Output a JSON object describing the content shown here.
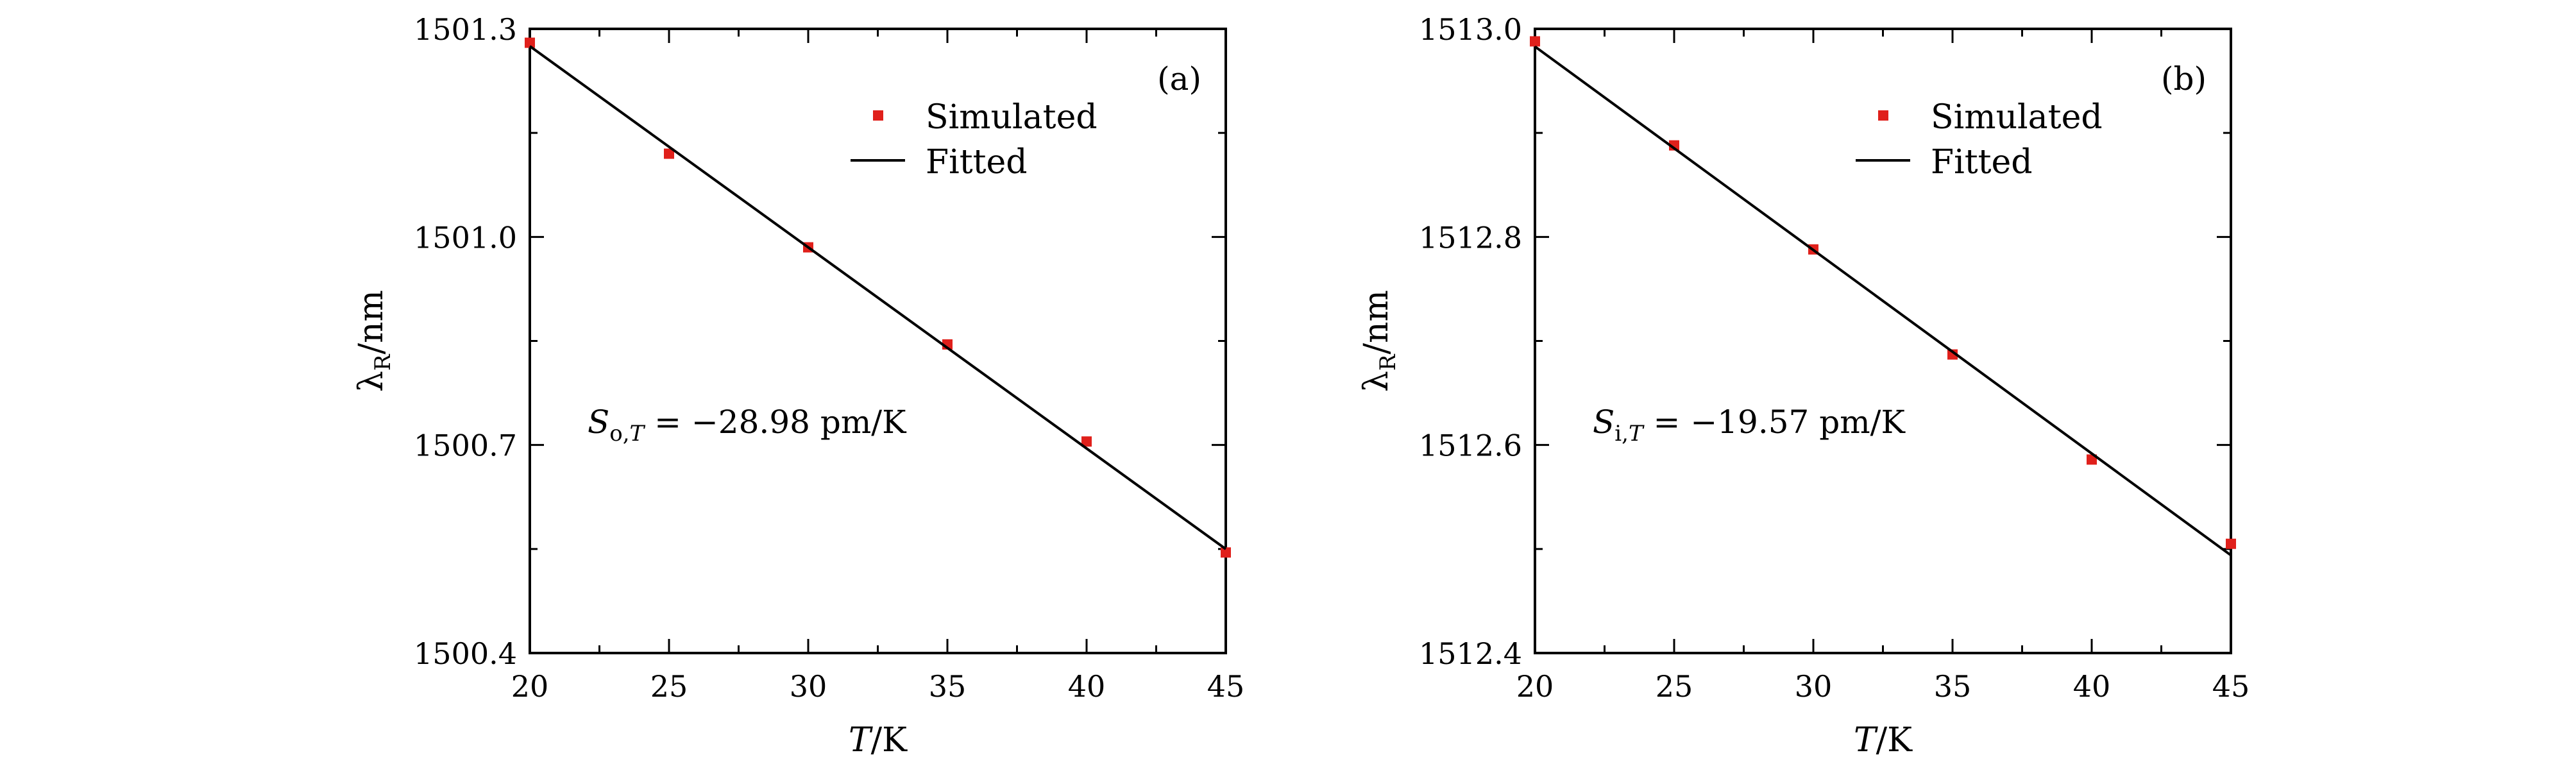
{
  "chart_data": [
    {
      "type": "scatter",
      "panel_label": "(a)",
      "xlabel_var": "T",
      "xlabel_unit": "/K",
      "ylabel_var": "λ",
      "ylabel_sub": "R",
      "ylabel_unit": "/nm",
      "xlim": [
        20,
        45
      ],
      "ylim": [
        1500.4,
        1501.3
      ],
      "xticks": [
        "20",
        "25",
        "30",
        "35",
        "40",
        "45"
      ],
      "yticks": [
        "1500.4",
        "1500.7",
        "1501.0",
        "1501.3"
      ],
      "grid": false,
      "legend_position": "top-right",
      "series": [
        {
          "name": "Simulated",
          "kind": "points",
          "x": [
            20,
            25,
            30,
            35,
            40,
            45
          ],
          "y": [
            1501.28,
            1501.12,
            1500.985,
            1500.845,
            1500.705,
            1500.545
          ],
          "color": "#e0201b"
        },
        {
          "name": "Fitted",
          "kind": "line",
          "x": [
            20,
            45
          ],
          "y": [
            1501.275,
            1500.55
          ],
          "color": "#000000"
        }
      ],
      "annotation": {
        "var": "S",
        "sub": "o,",
        "sub_var": "T",
        "rest": " = −28.98 pm/K"
      }
    },
    {
      "type": "scatter",
      "panel_label": "(b)",
      "xlabel_var": "T",
      "xlabel_unit": "/K",
      "ylabel_var": "λ",
      "ylabel_sub": "R",
      "ylabel_unit": "/nm",
      "xlim": [
        20,
        45
      ],
      "ylim": [
        1512.4,
        1513.0
      ],
      "xticks": [
        "20",
        "25",
        "30",
        "35",
        "40",
        "45"
      ],
      "yticks": [
        "1512.4",
        "1512.6",
        "1512.8",
        "1513.0"
      ],
      "grid": false,
      "legend_position": "top-right",
      "series": [
        {
          "name": "Simulated",
          "kind": "points",
          "x": [
            20,
            25,
            30,
            35,
            40,
            45
          ],
          "y": [
            1512.988,
            1512.888,
            1512.788,
            1512.687,
            1512.586,
            1512.505
          ],
          "color": "#e0201b"
        },
        {
          "name": "Fitted",
          "kind": "line",
          "x": [
            20,
            45
          ],
          "y": [
            1512.983,
            1512.494
          ],
          "color": "#000000"
        }
      ],
      "annotation": {
        "var": "S",
        "sub": "i,",
        "sub_var": "T",
        "rest": " = −19.57 pm/K"
      }
    }
  ]
}
